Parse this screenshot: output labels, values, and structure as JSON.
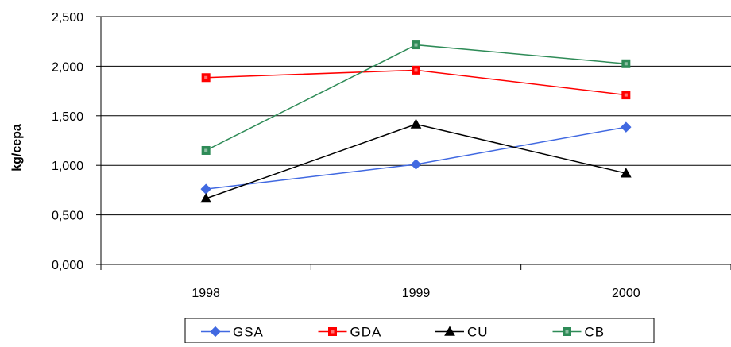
{
  "chart_data": {
    "type": "line",
    "title": "",
    "xlabel": "",
    "ylabel": "kg/cepa",
    "categories": [
      "1998",
      "1999",
      "2000"
    ],
    "ylim": [
      0,
      2500
    ],
    "yticks": [
      0,
      500,
      1000,
      1500,
      2000,
      2500
    ],
    "ytick_labels": [
      "0,000",
      "0,500",
      "1,000",
      "1,500",
      "2,000",
      "2,500"
    ],
    "grid": true,
    "legend_position": "bottom",
    "series": [
      {
        "name": "GSA",
        "values": [
          760,
          1010,
          1385
        ],
        "color": "#4169e1",
        "marker": "diamond"
      },
      {
        "name": "GDA",
        "values": [
          1885,
          1960,
          1710
        ],
        "color": "#ff0000",
        "marker": "square"
      },
      {
        "name": "CU",
        "values": [
          665,
          1415,
          920
        ],
        "color": "#000000",
        "marker": "triangle"
      },
      {
        "name": "CB",
        "values": [
          1150,
          2215,
          2025
        ],
        "color": "#2e8b57",
        "marker": "square"
      }
    ]
  }
}
